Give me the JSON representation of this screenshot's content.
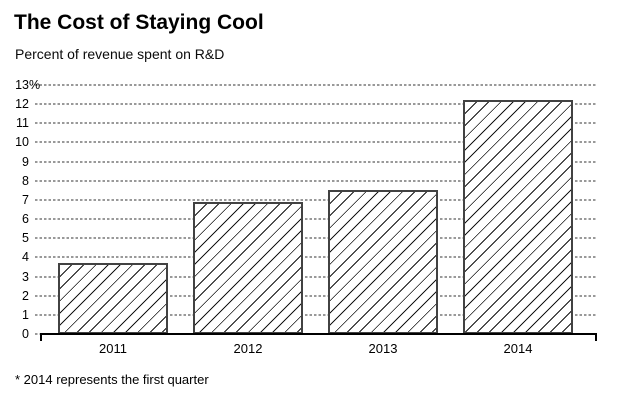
{
  "header": {
    "title": "The Cost of Staying Cool",
    "subtitle": "Percent of revenue spent on R&D"
  },
  "footnote": "* 2014 represents the first quarter",
  "chart_data": {
    "type": "bar",
    "title": "The Cost of Staying Cool",
    "subtitle": "Percent of revenue spent on R&D",
    "categories": [
      "2011",
      "2012",
      "2013",
      "2014"
    ],
    "values": [
      3.7,
      6.9,
      7.5,
      12.2
    ],
    "xlabel": "",
    "ylabel": "Percent of revenue spent on R&D",
    "ylim": [
      0,
      13
    ],
    "ytick_labels": [
      "0",
      "1",
      "2",
      "3",
      "4",
      "5",
      "6",
      "7",
      "8",
      "9",
      "10",
      "11",
      "12",
      "13%"
    ],
    "grid": "horizontal dotted gray lines at every integer",
    "legend": "none",
    "bar_style": "white fill with thin black diagonal hatch (/) and dark gray border",
    "footnote": "* 2014 represents the first quarter",
    "colors": {
      "background": "#ffffff",
      "text": "#000000",
      "gridline": "#999999",
      "bar_border": "#424242",
      "hatch_line": "#161616",
      "axis": "#000000"
    }
  }
}
